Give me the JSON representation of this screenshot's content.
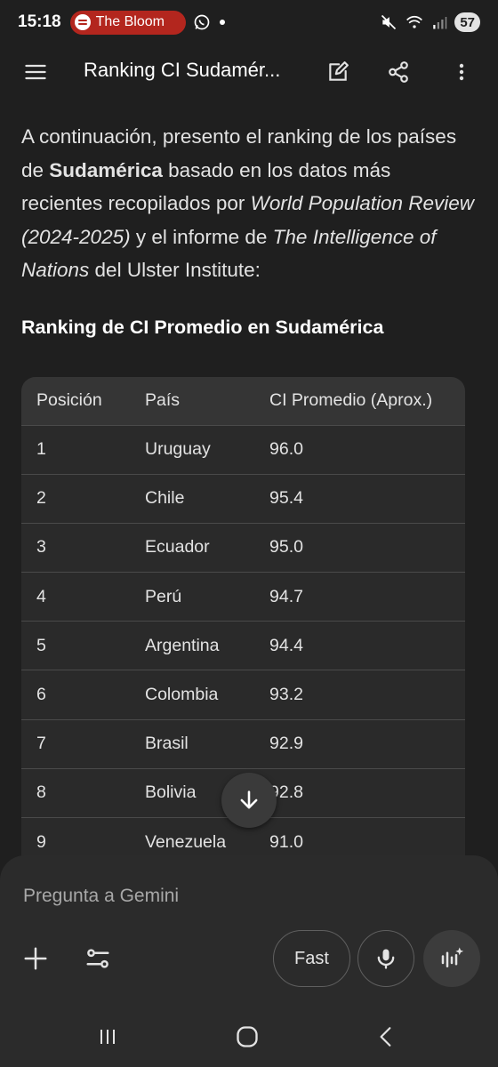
{
  "status_bar": {
    "time": "15:18",
    "media_text": "The Bloom",
    "battery": "57"
  },
  "app_bar": {
    "title": "Ranking CI Sudamér..."
  },
  "intro": {
    "p1": "A continuación, presento el ranking de los países de ",
    "b1": "Sudamérica",
    "p2": " basado en los datos más recientes recopilados por ",
    "i1": "World Population Review (2024-2025)",
    "p3": " y el informe de ",
    "i2": "The Intelligence of Nations",
    "p4": " del Ulster Institute:"
  },
  "section_heading": "Ranking de CI Promedio en Sudamérica",
  "table": {
    "headers": [
      "Posición",
      "País",
      "CI Promedio (Aprox.)"
    ],
    "rows": [
      [
        "1",
        "Uruguay",
        "96.0"
      ],
      [
        "2",
        "Chile",
        "95.4"
      ],
      [
        "3",
        "Ecuador",
        "95.0"
      ],
      [
        "4",
        "Perú",
        "94.7"
      ],
      [
        "5",
        "Argentina",
        "94.4"
      ],
      [
        "6",
        "Colombia",
        "93.2"
      ],
      [
        "7",
        "Brasil",
        "92.9"
      ],
      [
        "8",
        "Bolivia",
        "92.8"
      ],
      [
        "9",
        "Venezuela",
        "91.0"
      ]
    ]
  },
  "composer": {
    "placeholder": "Pregunta a Gemini",
    "fast_label": "Fast"
  },
  "icons": {
    "menu": "menu-icon",
    "edit": "edit-icon",
    "share": "share-icon",
    "more": "more-vert-icon",
    "scroll_down": "arrow-down-icon",
    "plus": "plus-icon",
    "tools": "tools-icon",
    "mic": "mic-icon",
    "live": "live-icon"
  }
}
